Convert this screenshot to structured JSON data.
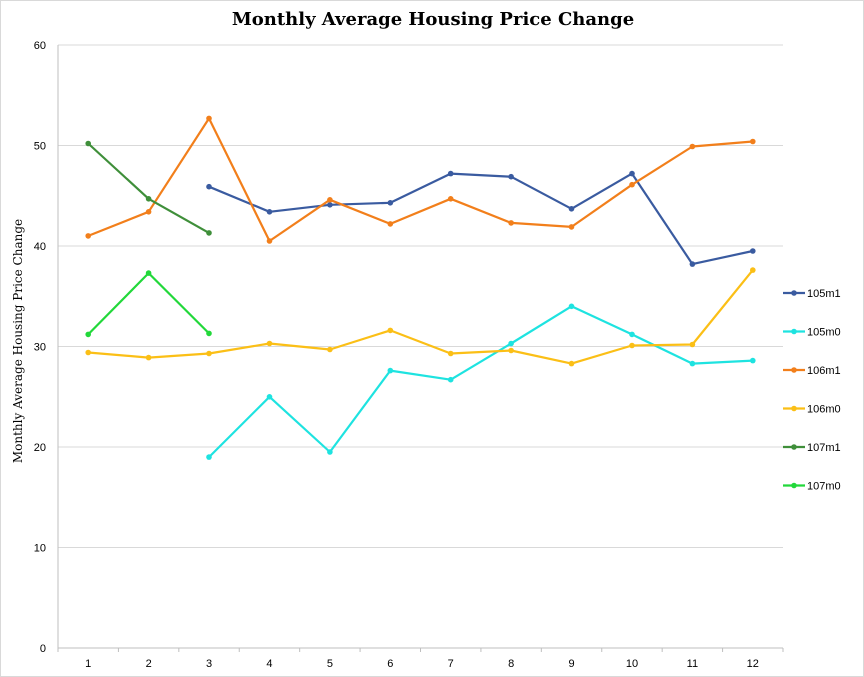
{
  "chart_data": {
    "type": "line",
    "title": "Monthly Average Housing Price Change",
    "xlabel": "",
    "ylabel": "Monthly Average Housing Price Change",
    "categories": [
      "1",
      "2",
      "3",
      "4",
      "5",
      "6",
      "7",
      "8",
      "9",
      "10",
      "11",
      "12"
    ],
    "ylim": [
      0,
      60
    ],
    "yticks": [
      0,
      10,
      20,
      30,
      40,
      50,
      60
    ],
    "grid": true,
    "legend_position": "right",
    "series": [
      {
        "name": "105m1",
        "color": "#3a5ba0",
        "values": [
          null,
          null,
          45.9,
          43.4,
          44.1,
          44.3,
          47.2,
          46.9,
          43.7,
          47.2,
          38.2,
          39.5
        ]
      },
      {
        "name": "105m0",
        "color": "#1ee3e0",
        "values": [
          null,
          null,
          19.0,
          25.0,
          19.5,
          27.6,
          26.7,
          30.3,
          34.0,
          31.2,
          28.3,
          28.6
        ]
      },
      {
        "name": "106m1",
        "color": "#f27f1b",
        "values": [
          41.0,
          43.4,
          52.7,
          40.5,
          44.6,
          42.2,
          44.7,
          42.3,
          41.9,
          46.1,
          49.9,
          50.4
        ]
      },
      {
        "name": "106m0",
        "color": "#fbbf16",
        "values": [
          29.4,
          28.9,
          29.3,
          30.3,
          29.7,
          31.6,
          29.3,
          29.6,
          28.3,
          30.1,
          30.2,
          37.6
        ]
      },
      {
        "name": "107m1",
        "color": "#3f8f3a",
        "values": [
          50.2,
          44.7,
          41.3,
          null,
          null,
          null,
          null,
          null,
          null,
          null,
          null,
          null
        ]
      },
      {
        "name": "107m0",
        "color": "#22d83a",
        "values": [
          31.2,
          37.3,
          31.3,
          null,
          null,
          null,
          null,
          null,
          null,
          null,
          null,
          null
        ]
      }
    ]
  }
}
